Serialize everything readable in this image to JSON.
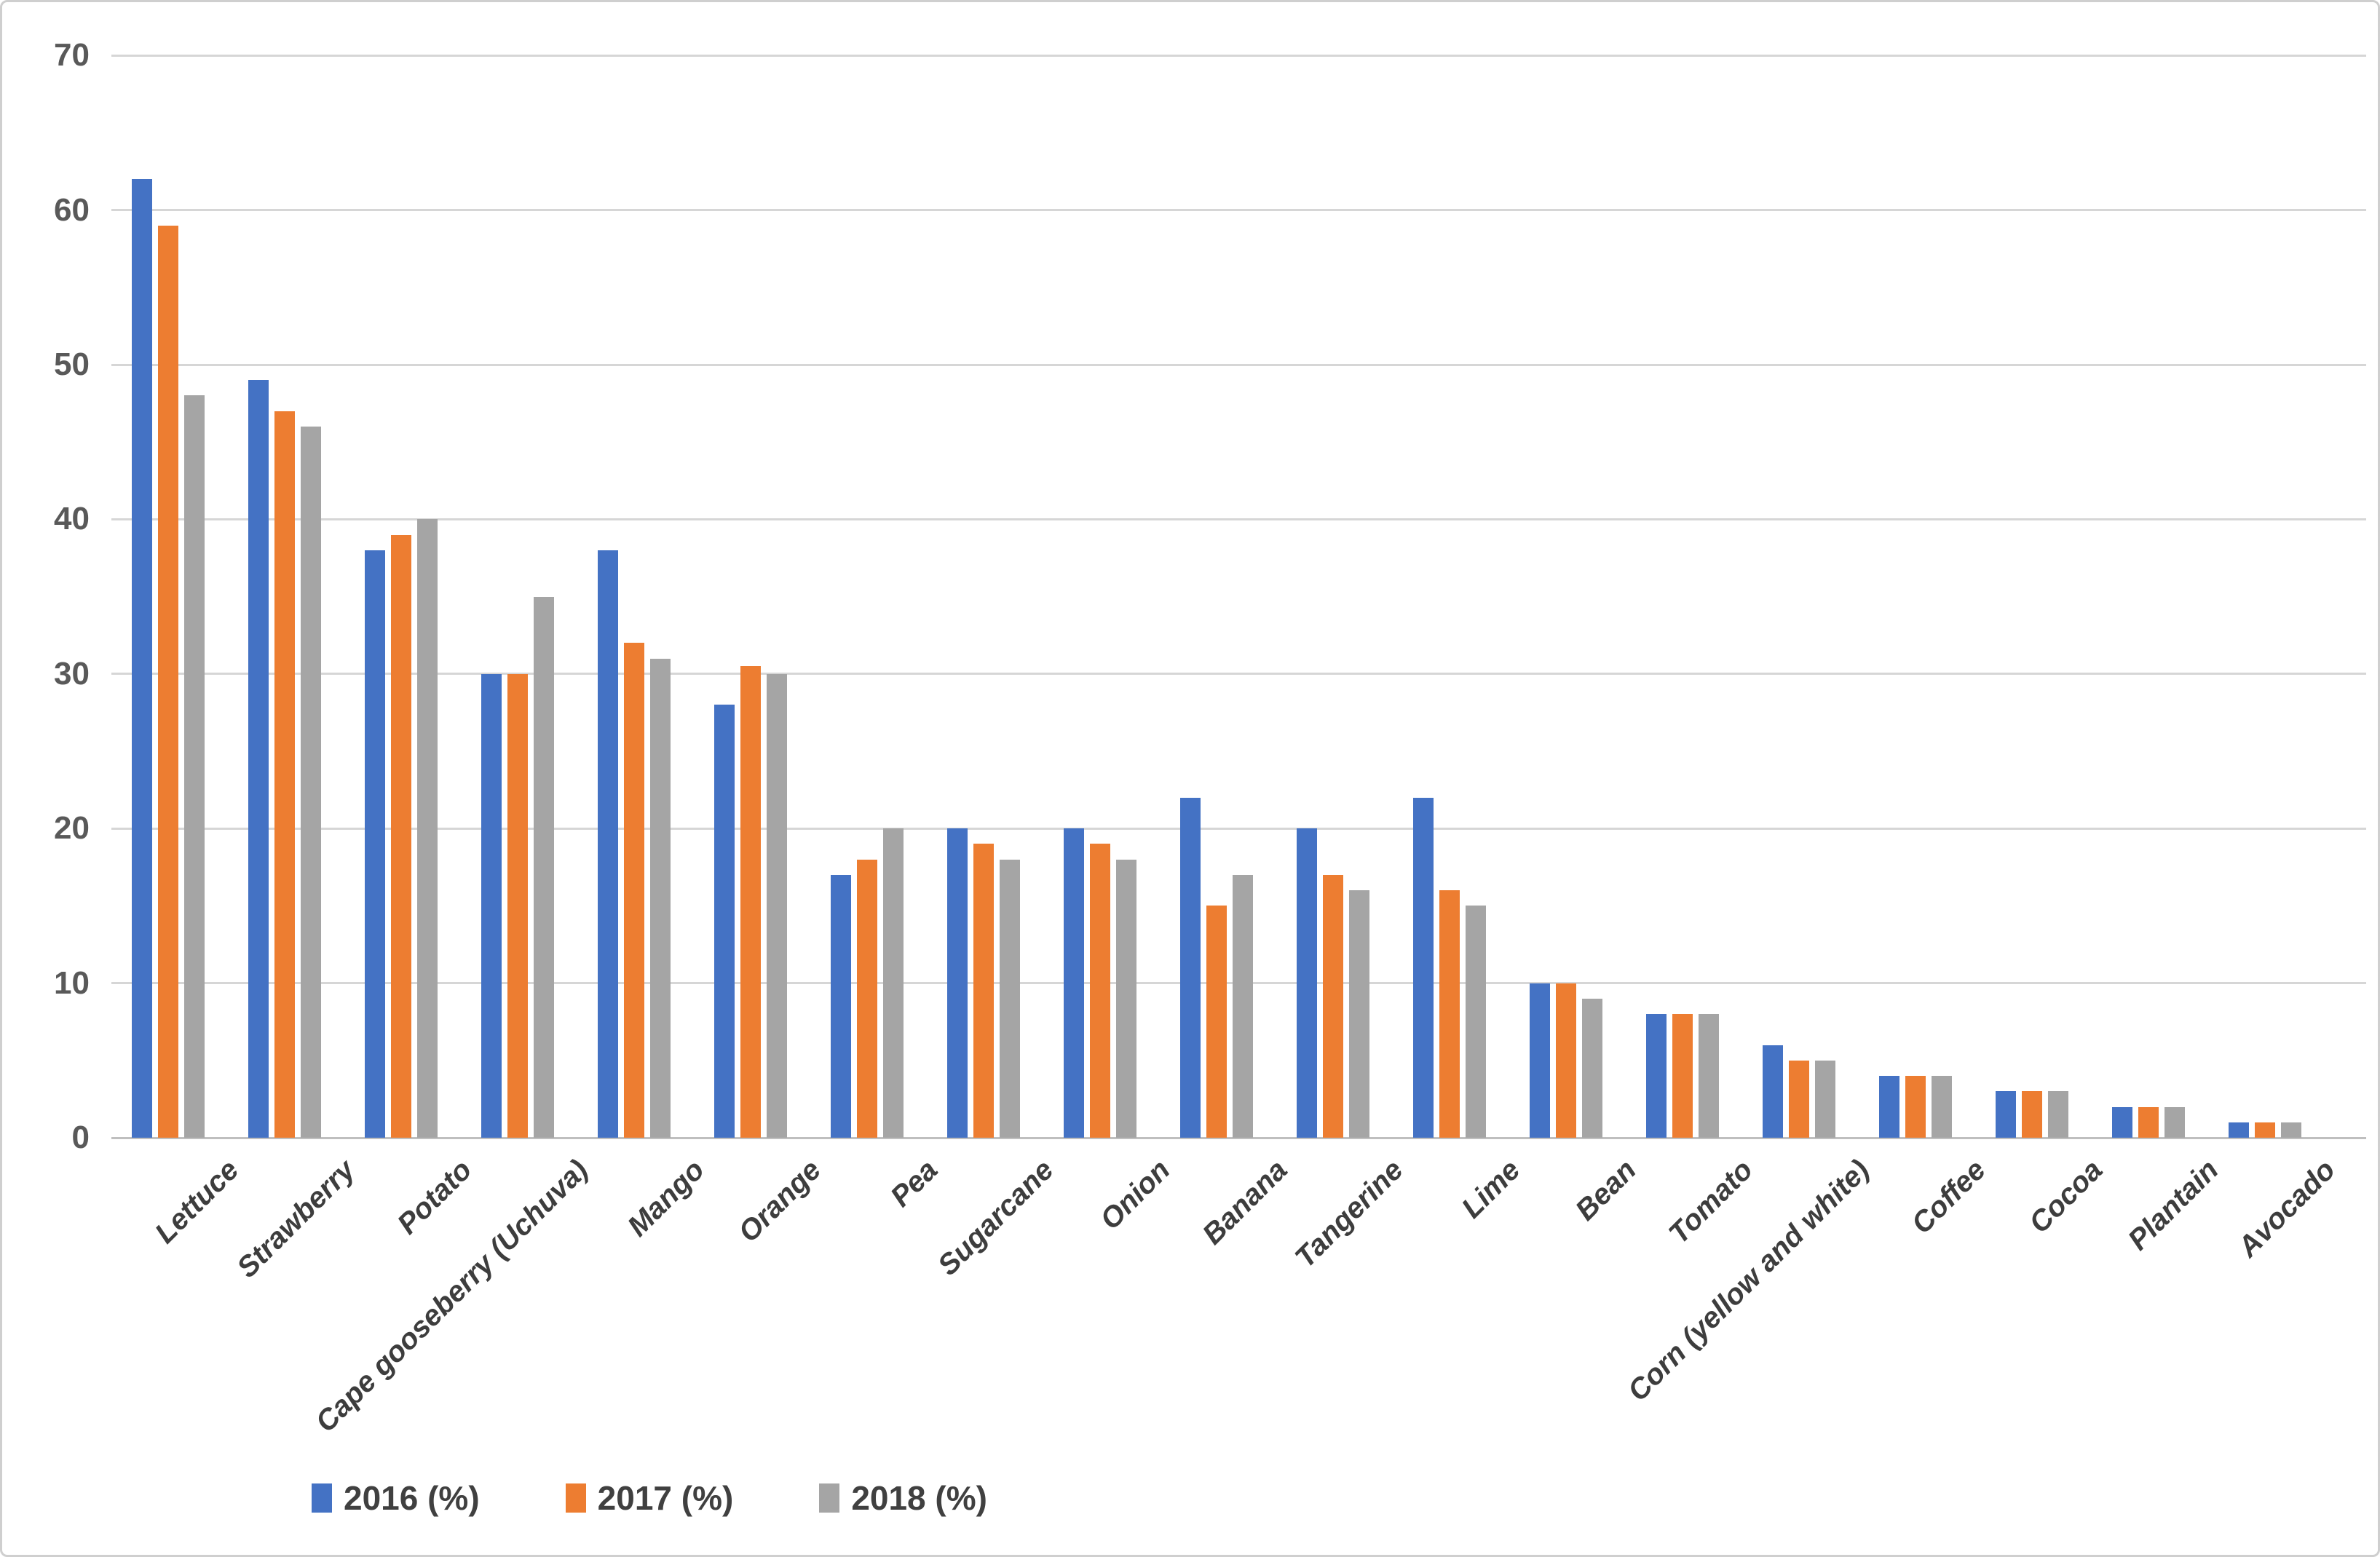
{
  "chart_data": {
    "type": "bar",
    "title": "",
    "xlabel": "",
    "ylabel": "",
    "categories": [
      "Lettuce",
      "Strawberry",
      "Potato",
      "Cape gooseberry (Uchuva)",
      "Mango",
      "Orange",
      "Pea",
      "Sugarcane",
      "Onion",
      "Banana",
      "Tangerine",
      "Lime",
      "Bean",
      "Tomato",
      "Corn (yellow and white)",
      "Coffee",
      "Cocoa",
      "Plantain",
      "Avocado"
    ],
    "series": [
      {
        "name": "2016 (%)",
        "color": "#4472C4",
        "values": [
          62,
          49,
          38,
          30,
          38,
          28,
          17,
          20,
          20,
          22,
          20,
          22,
          10,
          8,
          6,
          4,
          3,
          2,
          1
        ]
      },
      {
        "name": "2017 (%)",
        "color": "#ED7D31",
        "values": [
          59,
          47,
          39,
          30,
          32,
          30.5,
          18,
          19,
          19,
          15,
          17,
          16,
          10,
          8,
          5,
          4,
          3,
          2,
          1
        ]
      },
      {
        "name": "2018 (%)",
        "color": "#A5A5A5",
        "values": [
          48,
          46,
          40,
          35,
          31,
          30,
          20,
          18,
          18,
          17,
          16,
          15,
          9,
          8,
          5,
          4,
          3,
          2,
          1
        ]
      }
    ],
    "ylim": [
      0,
      70
    ],
    "y_ticks": [
      0,
      10,
      20,
      30,
      40,
      50,
      60,
      70
    ],
    "grid": true,
    "legend_position": "bottom-left"
  },
  "ui_colors": {
    "background": "#FFFFFF",
    "frame_border": "#CFCFCF",
    "gridline": "#D6D6D6",
    "axis_line": "#BFBFBF",
    "y_axis_text": "#595959",
    "category_text": "#3D3D3D",
    "legend_text": "#404040"
  }
}
